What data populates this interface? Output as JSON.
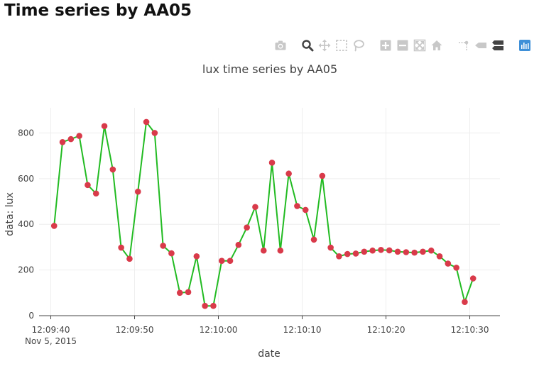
{
  "page": {
    "title": "Time series by AA05"
  },
  "modebar": {
    "buttons": [
      {
        "name": "camera-icon"
      },
      {
        "name": "zoom-icon"
      },
      {
        "name": "pan-icon"
      },
      {
        "name": "box-select-icon"
      },
      {
        "name": "lasso-select-icon"
      },
      {
        "name": "zoom-in-icon"
      },
      {
        "name": "zoom-out-icon"
      },
      {
        "name": "autoscale-icon"
      },
      {
        "name": "reset-axes-icon"
      },
      {
        "name": "spike-lines-icon"
      },
      {
        "name": "hover-closest-icon"
      },
      {
        "name": "hover-compare-icon"
      },
      {
        "name": "plotly-logo-icon"
      }
    ],
    "colors": {
      "icon": "#c8c8c8",
      "active": "#444444",
      "logo": "#3f90d8"
    }
  },
  "chart_data": {
    "type": "line",
    "title": "lux time series by AA05",
    "xlabel": "date",
    "ylabel": "data: lux",
    "xlim": [
      "12:09:38.6",
      "12:10:33.6"
    ],
    "ylim": [
      0,
      910
    ],
    "grid": true,
    "legend": "none",
    "x_ticks": [
      {
        "value": "12:09:40",
        "label": "12:09:40",
        "sublabel": "Nov 5, 2015"
      },
      {
        "value": "12:09:50",
        "label": "12:09:50"
      },
      {
        "value": "12:10:00",
        "label": "12:10:00"
      },
      {
        "value": "12:10:10",
        "label": "12:10:10"
      },
      {
        "value": "12:10:20",
        "label": "12:10:20"
      },
      {
        "value": "12:10:30",
        "label": "12:10:30"
      }
    ],
    "y_ticks": [
      0,
      200,
      400,
      600,
      800
    ],
    "series": [
      {
        "line_color": "#22bb22",
        "marker_color": "#d93a4a",
        "x": [
          "12:09:40.4",
          "12:09:41.4",
          "12:09:42.4",
          "12:09:43.4",
          "12:09:44.4",
          "12:09:45.4",
          "12:09:46.4",
          "12:09:47.4",
          "12:09:48.4",
          "12:09:49.4",
          "12:09:50.4",
          "12:09:51.4",
          "12:09:52.4",
          "12:09:53.4",
          "12:09:54.4",
          "12:09:55.4",
          "12:09:56.4",
          "12:09:57.4",
          "12:09:58.4",
          "12:09:59.4",
          "12:10:00.4",
          "12:10:01.4",
          "12:10:02.4",
          "12:10:03.4",
          "12:10:04.4",
          "12:10:05.4",
          "12:10:06.4",
          "12:10:07.4",
          "12:10:08.4",
          "12:10:09.4",
          "12:10:10.4",
          "12:10:11.4",
          "12:10:12.4",
          "12:10:13.4",
          "12:10:14.4",
          "12:10:15.4",
          "12:10:16.4",
          "12:10:17.4",
          "12:10:18.4",
          "12:10:19.4",
          "12:10:20.4",
          "12:10:21.4",
          "12:10:22.4",
          "12:10:23.4",
          "12:10:24.4",
          "12:10:25.4",
          "12:10:26.4",
          "12:10:27.4",
          "12:10:28.4",
          "12:10:29.4",
          "12:10:30.4"
        ],
        "y": [
          393,
          760,
          773,
          787,
          572,
          535,
          830,
          640,
          298,
          249,
          543,
          848,
          800,
          306,
          273,
          100,
          103,
          260,
          43,
          43,
          240,
          240,
          310,
          386,
          476,
          285,
          670,
          285,
          622,
          480,
          463,
          333,
          612,
          298,
          260,
          270,
          272,
          280,
          285,
          288,
          286,
          280,
          278,
          276,
          280,
          285,
          260,
          228,
          210,
          60,
          163
        ]
      }
    ]
  }
}
